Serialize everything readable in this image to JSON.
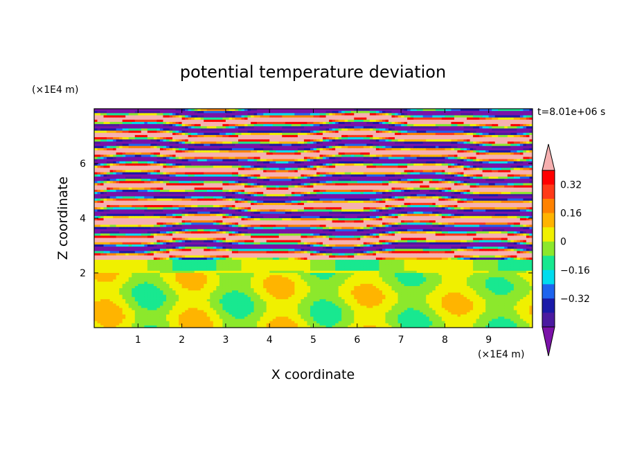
{
  "chart_data": {
    "type": "heatmap",
    "title": "potential temperature deviation",
    "xlabel": "X coordinate",
    "ylabel": "Z coordinate",
    "x_unit": "(×1E4 m)",
    "y_unit": "(×1E4 m)",
    "time_label": "t=8.01e+06 s",
    "xlim": [
      0,
      10
    ],
    "ylim": [
      0,
      8
    ],
    "x_ticks": [
      "1",
      "2",
      "3",
      "4",
      "5",
      "6",
      "7",
      "8",
      "9"
    ],
    "y_ticks": [
      "2",
      "4",
      "6"
    ],
    "colorbar": {
      "levels": [
        -0.48,
        -0.4,
        -0.32,
        -0.24,
        -0.16,
        -0.08,
        0,
        0.08,
        0.16,
        0.24,
        0.32,
        0.4,
        0.48
      ],
      "labeled_levels": [
        "0.32",
        "0.16",
        "0",
        "−0.16",
        "−0.32"
      ],
      "colors": [
        "#7b12a8",
        "#4b1aa0",
        "#1a1aa8",
        "#1e64ee",
        "#00dcee",
        "#18e890",
        "#8ce82c",
        "#f0f000",
        "#ffb400",
        "#ff8200",
        "#ff3a18",
        "#ff0000",
        "#f6b0b0"
      ],
      "extend": "both"
    },
    "fields": {
      "upper_bands_z": [
        2.05,
        2.5
      ],
      "lower_layer_top_z": 2.0,
      "description_values": {
        "upper_layer_extremes": [
          -0.48,
          0.48
        ],
        "lower_layer_range": [
          -0.08,
          0.08
        ]
      }
    }
  }
}
